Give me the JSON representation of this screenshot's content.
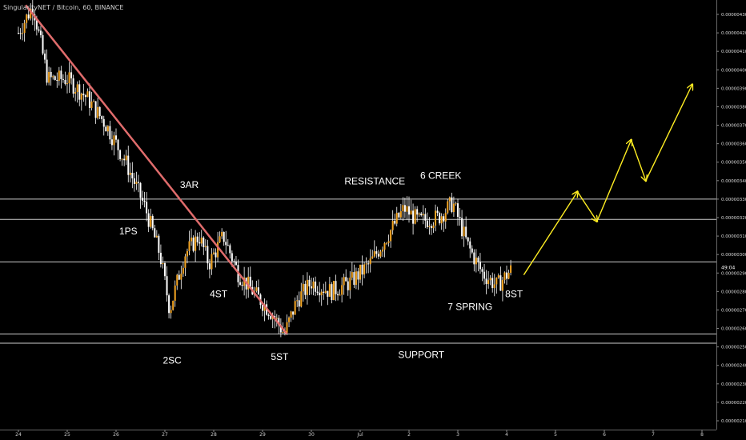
{
  "header": {
    "title": "SingularityNET / Bitcoin, 60, BINANCE"
  },
  "colors": {
    "background": "#000000",
    "candle": "#f5a623",
    "wick": "#ffffff",
    "trendline": "#e06c6c",
    "projection": "#ffee22",
    "levels": "#cccccc",
    "text": "#ffffff"
  },
  "chart_data": {
    "type": "candlestick",
    "xlabel": "",
    "ylabel": "",
    "x_ticks": [
      "24",
      "25",
      "26",
      "27",
      "28",
      "29",
      "30",
      "Jul",
      "2",
      "3",
      "4",
      "5",
      "6",
      "7",
      "8"
    ],
    "y_ticks": [
      "0.00000210",
      "0.00000220",
      "0.00000230",
      "0.00000240",
      "0.00000250",
      "0.00000260",
      "0.00000270",
      "0.00000280",
      "0.00000290",
      "0.00000300",
      "0.00000310",
      "0.00000320",
      "0.00000330",
      "0.00000340",
      "0.00000350",
      "0.00000360",
      "0.00000370",
      "0.00000380",
      "0.00000390",
      "0.00000400",
      "0.00000410",
      "0.00000420",
      "0.00000430"
    ],
    "ylim": [
      2.05e-06,
      4.35e-06
    ],
    "xlim_days": [
      24,
      8
    ],
    "price_path": [
      [
        24.0,
        4.2e-06
      ],
      [
        24.3,
        4.35e-06
      ],
      [
        24.6,
        3.95e-06
      ],
      [
        25.0,
        3.95e-06
      ],
      [
        25.4,
        3.85e-06
      ],
      [
        25.8,
        3.7e-06
      ],
      [
        26.2,
        3.5e-06
      ],
      [
        26.6,
        3.25e-06
      ],
      [
        26.9,
        3e-06
      ],
      [
        27.1,
        2.7e-06
      ],
      [
        27.4,
        3e-06
      ],
      [
        27.7,
        3.1e-06
      ],
      [
        27.9,
        2.95e-06
      ],
      [
        28.2,
        3.1e-06
      ],
      [
        28.5,
        2.9e-06
      ],
      [
        28.8,
        2.8e-06
      ],
      [
        29.2,
        2.68e-06
      ],
      [
        29.45,
        2.57e-06
      ],
      [
        29.7,
        2.75e-06
      ],
      [
        30.0,
        2.85e-06
      ],
      [
        30.4,
        2.8e-06
      ],
      [
        30.8,
        2.85e-06
      ],
      [
        31.2,
        2.95e-06
      ],
      [
        31.6,
        3.12e-06
      ],
      [
        31.9,
        3.25e-06
      ],
      [
        32.2,
        3.18e-06
      ],
      [
        32.6,
        3.2e-06
      ],
      [
        32.9,
        3.28e-06
      ],
      [
        33.2,
        3.05e-06
      ],
      [
        33.5,
        2.9e-06
      ],
      [
        33.8,
        2.83e-06
      ],
      [
        34.1,
        2.92e-06
      ]
    ],
    "horizontal_levels": [
      "0.00000330",
      "0.00000319",
      "0.00000296",
      "0.00000257",
      "0.00000252"
    ],
    "trendline": [
      [
        24.15,
        4.35e-06
      ],
      [
        29.5,
        2.57e-06
      ]
    ],
    "projection_path": [
      [
        34.35,
        2.89e-06
      ],
      [
        35.45,
        3.34e-06
      ],
      [
        35.85,
        3.18e-06
      ],
      [
        36.55,
        3.62e-06
      ],
      [
        36.85,
        3.4e-06
      ],
      [
        37.8,
        3.92e-06
      ]
    ],
    "annotations": [
      {
        "text": "3AR",
        "x": 27.5,
        "y": 3.36e-06
      },
      {
        "text": "1PS",
        "x": 26.25,
        "y": 3.11e-06
      },
      {
        "text": "RESISTANCE",
        "x": 31.3,
        "y": 3.38e-06
      },
      {
        "text": "6 CREEK",
        "x": 32.65,
        "y": 3.41e-06
      },
      {
        "text": "4ST",
        "x": 28.1,
        "y": 2.77e-06
      },
      {
        "text": "2SC",
        "x": 27.15,
        "y": 2.41e-06
      },
      {
        "text": "5ST",
        "x": 29.35,
        "y": 2.43e-06
      },
      {
        "text": "SUPPORT",
        "x": 32.25,
        "y": 2.44e-06
      },
      {
        "text": "7 SPRING",
        "x": 33.25,
        "y": 2.7e-06
      },
      {
        "text": "8ST",
        "x": 34.15,
        "y": 2.77e-06
      }
    ],
    "current_price_label": "49:04"
  }
}
